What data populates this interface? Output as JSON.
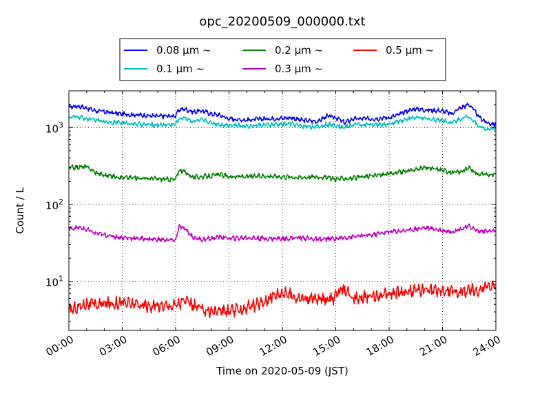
{
  "chart_data": {
    "type": "line",
    "title": "opc_20200509_000000.txt",
    "xlabel": "Time on 2020-05-09 (JST)",
    "ylabel": "Count / L",
    "xlim": [
      0,
      24
    ],
    "ylim": [
      2.3,
      3000
    ],
    "yscale": "log",
    "grid": true,
    "legend_position": "top-center",
    "x_ticks": [
      {
        "value": 0,
        "label": "00:00"
      },
      {
        "value": 3,
        "label": "03:00"
      },
      {
        "value": 6,
        "label": "06:00"
      },
      {
        "value": 9,
        "label": "09:00"
      },
      {
        "value": 12,
        "label": "12:00"
      },
      {
        "value": 15,
        "label": "15:00"
      },
      {
        "value": 18,
        "label": "18:00"
      },
      {
        "value": 21,
        "label": "21:00"
      },
      {
        "value": 24,
        "label": "24:00"
      }
    ],
    "y_ticks": [
      {
        "value": 10,
        "base": "10",
        "exp": "1"
      },
      {
        "value": 100,
        "base": "10",
        "exp": "2"
      },
      {
        "value": 1000,
        "base": "10",
        "exp": "3"
      }
    ],
    "series": [
      {
        "name": "0.08 μm ~",
        "color": "#0000ff",
        "x": [
          0,
          0.5,
          1,
          1.5,
          2,
          3,
          4,
          5,
          6,
          6.2,
          6.5,
          7,
          7.5,
          8,
          8.5,
          9,
          10,
          11,
          12,
          12.5,
          13,
          14,
          14.5,
          15,
          15.5,
          16,
          17,
          18,
          18.5,
          19,
          19.5,
          20,
          21,
          21.5,
          22,
          22.5,
          23,
          23.5,
          24
        ],
        "y": [
          1850,
          1900,
          1800,
          1650,
          1600,
          1500,
          1450,
          1400,
          1420,
          1700,
          1750,
          1600,
          1650,
          1500,
          1450,
          1300,
          1250,
          1300,
          1320,
          1350,
          1250,
          1200,
          1400,
          1350,
          1150,
          1300,
          1300,
          1350,
          1450,
          1650,
          1750,
          1700,
          1650,
          1500,
          1800,
          2000,
          1400,
          1150,
          1100
        ]
      },
      {
        "name": "0.1 μm ~",
        "color": "#00bfbf",
        "x": [
          0,
          0.5,
          1,
          1.5,
          2,
          3,
          4,
          5,
          6,
          6.2,
          6.5,
          7,
          7.5,
          8,
          8.5,
          9,
          10,
          11,
          12,
          12.5,
          13,
          14,
          14.5,
          15,
          15.5,
          16,
          17,
          18,
          18.5,
          19,
          19.5,
          20,
          21,
          21.5,
          22,
          22.5,
          23,
          23.5,
          24
        ],
        "y": [
          1350,
          1380,
          1300,
          1250,
          1200,
          1150,
          1100,
          1080,
          1100,
          1300,
          1350,
          1200,
          1250,
          1150,
          1100,
          1080,
          1050,
          1080,
          1100,
          1120,
          1050,
          1020,
          1100,
          1080,
          1000,
          1100,
          1080,
          1100,
          1200,
          1300,
          1350,
          1300,
          1250,
          1150,
          1300,
          1400,
          1050,
          950,
          950
        ]
      },
      {
        "name": "0.2 μm ~",
        "color": "#008000",
        "x": [
          0,
          0.5,
          1,
          1.5,
          2,
          3,
          4,
          5,
          6,
          6.2,
          6.5,
          7,
          7.5,
          8,
          8.5,
          9,
          10,
          11,
          12,
          13,
          14,
          15,
          16,
          17,
          18,
          19,
          20,
          21,
          21.5,
          22,
          22.5,
          23,
          24
        ],
        "y": [
          300,
          305,
          310,
          260,
          240,
          225,
          220,
          215,
          210,
          280,
          265,
          225,
          230,
          235,
          245,
          230,
          230,
          235,
          230,
          225,
          230,
          215,
          220,
          235,
          250,
          270,
          300,
          280,
          260,
          265,
          295,
          250,
          240
        ]
      },
      {
        "name": "0.3 μm ~",
        "color": "#bf00bf",
        "x": [
          0,
          0.5,
          1,
          1.5,
          2,
          3,
          4,
          5,
          6,
          6.2,
          6.5,
          7,
          7.5,
          8,
          8.5,
          9,
          10,
          11,
          12,
          13,
          14,
          15,
          16,
          17,
          18,
          19,
          20,
          21,
          21.5,
          22,
          22.5,
          23,
          24
        ],
        "y": [
          48,
          50,
          47,
          42,
          40,
          37,
          36,
          35,
          34,
          52,
          48,
          37,
          35,
          36,
          38,
          36,
          37,
          36,
          36,
          37,
          35,
          36,
          38,
          40,
          44,
          46,
          50,
          46,
          44,
          48,
          52,
          45,
          45
        ]
      },
      {
        "name": "0.5 μm ~",
        "color": "#ff0000",
        "x": [
          0,
          0.5,
          1,
          1.5,
          2,
          3,
          4,
          5,
          6,
          6.2,
          6.5,
          7,
          7.5,
          8,
          8.5,
          9,
          10,
          11,
          11.5,
          12,
          12.5,
          13,
          14,
          15,
          15.3,
          16,
          17,
          18,
          19,
          20,
          21,
          22,
          23,
          23.5,
          24
        ],
        "y": [
          4.2,
          4.6,
          5.2,
          4.9,
          5.1,
          5.3,
          4.9,
          4.8,
          4.9,
          5.2,
          5.6,
          4.8,
          4.3,
          4.1,
          4.2,
          4.0,
          4.5,
          5.4,
          6.6,
          7.2,
          6.6,
          6.0,
          5.8,
          6.2,
          7.8,
          6.2,
          6.3,
          6.8,
          7.3,
          7.8,
          7.4,
          7.3,
          7.8,
          8.6,
          8.3
        ]
      }
    ]
  }
}
